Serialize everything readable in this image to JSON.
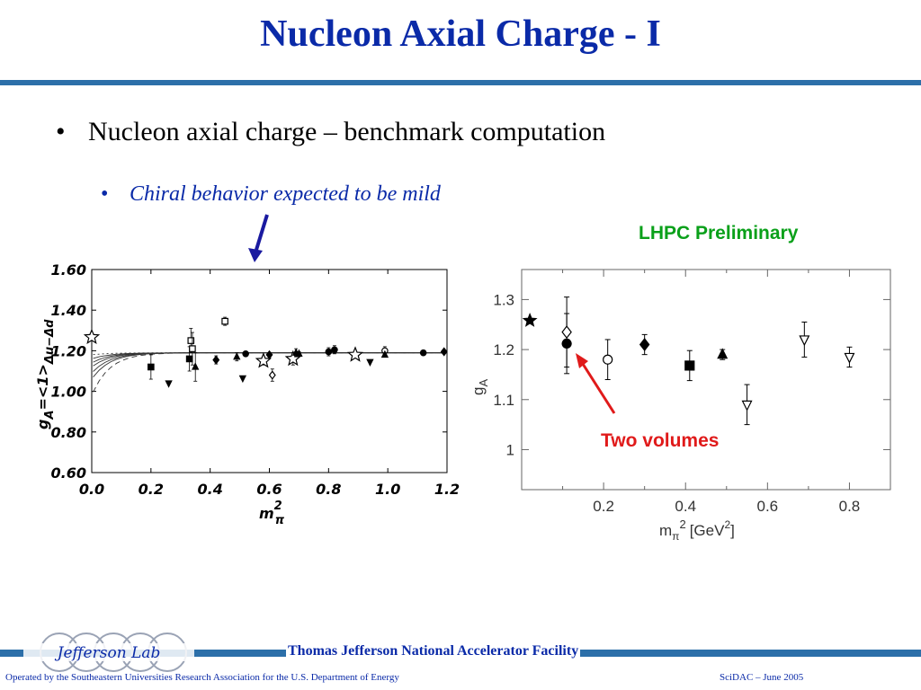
{
  "slide": {
    "title": "Nucleon Axial Charge - I",
    "bullet1": "Nucleon axial charge – benchmark computation",
    "bullet2": "Chiral behavior expected to be mild",
    "bullet_char": "•",
    "annotation_lhpc": "LHPC Preliminary",
    "annotation_two_volumes": "Two volumes"
  },
  "footer": {
    "logo_text": "Jefferson Lab",
    "facility": "Thomas Jefferson National Accelerator Facility",
    "operated_by": "Operated by the Southeastern Universities Research Association for the U.S. Department of  Energy",
    "event": "SciDAC – June  2005"
  },
  "colors": {
    "title": "#0a2aa8",
    "rule": "#2c6fa9",
    "green": "#0aa01a",
    "red": "#e01a1a",
    "arrow_blue": "#1a1aa0"
  },
  "chart_data": [
    {
      "type": "scatter",
      "xlim": [
        0.0,
        1.2
      ],
      "ylim": [
        0.6,
        1.6
      ],
      "x_ticks": [
        "0.0",
        "0.2",
        "0.4",
        "0.6",
        "0.8",
        "1.0",
        "1.2"
      ],
      "y_ticks": [
        "0.60",
        "0.80",
        "1.00",
        "1.20",
        "1.40",
        "1.60"
      ],
      "xlabel": "m",
      "xlabel_sup": "2",
      "xlabel_sub": "π",
      "ylabel": "g",
      "ylabel_sub1": "A",
      "ylabel_mid": "=<1>",
      "ylabel_sub2": "Δu−Δd",
      "points": [
        {
          "x": 0.0,
          "y": 1.267,
          "m": "star-open",
          "e": 0
        },
        {
          "x": 0.2,
          "y": 1.12,
          "m": "square",
          "e": 0.06
        },
        {
          "x": 0.26,
          "y": 1.04,
          "m": "tri-down",
          "e": 0
        },
        {
          "x": 0.33,
          "y": 1.16,
          "m": "square",
          "e": 0.06
        },
        {
          "x": 0.335,
          "y": 1.25,
          "m": "square-open",
          "e": 0.06
        },
        {
          "x": 0.34,
          "y": 1.21,
          "m": "square-open",
          "e": 0.08
        },
        {
          "x": 0.35,
          "y": 1.12,
          "m": "tri-up",
          "e": 0.07
        },
        {
          "x": 0.42,
          "y": 1.155,
          "m": "diamond",
          "e": 0.02
        },
        {
          "x": 0.45,
          "y": 1.345,
          "m": "square-open",
          "e": 0.02
        },
        {
          "x": 0.49,
          "y": 1.17,
          "m": "tri-up",
          "e": 0.02
        },
        {
          "x": 0.51,
          "y": 1.065,
          "m": "tri-down",
          "e": 0
        },
        {
          "x": 0.52,
          "y": 1.185,
          "m": "circle",
          "e": 0.01
        },
        {
          "x": 0.58,
          "y": 1.15,
          "m": "star-open",
          "e": 0.02
        },
        {
          "x": 0.6,
          "y": 1.18,
          "m": "diamond",
          "e": 0.01
        },
        {
          "x": 0.61,
          "y": 1.08,
          "m": "diamond-open",
          "e": 0.03
        },
        {
          "x": 0.68,
          "y": 1.16,
          "m": "star-open",
          "e": 0.03
        },
        {
          "x": 0.69,
          "y": 1.19,
          "m": "tri-up",
          "e": 0.02
        },
        {
          "x": 0.7,
          "y": 1.185,
          "m": "tri-up",
          "e": 0.01
        },
        {
          "x": 0.8,
          "y": 1.195,
          "m": "circle",
          "e": 0.02
        },
        {
          "x": 0.82,
          "y": 1.205,
          "m": "circle",
          "e": 0.02
        },
        {
          "x": 0.89,
          "y": 1.18,
          "m": "star-open",
          "e": 0.01
        },
        {
          "x": 0.94,
          "y": 1.145,
          "m": "tri-down",
          "e": 0
        },
        {
          "x": 0.99,
          "y": 1.2,
          "m": "circle-open",
          "e": 0.02
        },
        {
          "x": 0.99,
          "y": 1.18,
          "m": "tri-up",
          "e": 0.01
        },
        {
          "x": 1.12,
          "y": 1.19,
          "m": "circle",
          "e": 0
        },
        {
          "x": 1.19,
          "y": 1.195,
          "m": "diamond",
          "e": 0
        }
      ],
      "curves": [
        {
          "y0": 0.98,
          "style": "dashed"
        },
        {
          "y0": 1.06,
          "style": "solid"
        },
        {
          "y0": 1.09,
          "style": "solid"
        },
        {
          "y0": 1.12,
          "style": "solid"
        },
        {
          "y0": 1.14,
          "style": "solid"
        },
        {
          "y0": 1.16,
          "style": "solid"
        },
        {
          "y0": 1.18,
          "style": "dotted"
        }
      ],
      "curve_end": 1.19
    },
    {
      "type": "scatter",
      "xlim": [
        0.0,
        0.9
      ],
      "ylim": [
        0.92,
        1.36
      ],
      "x_ticks": [
        "0.2",
        "0.4",
        "0.6",
        "0.8"
      ],
      "y_ticks": [
        "1",
        "1.1",
        "1.2",
        "1.3"
      ],
      "xlabel": "m",
      "xlabel_sub": "π",
      "xlabel_sup": "2",
      "xlabel_unit": "[GeV",
      "xlabel_unit_sup": "2",
      "xlabel_unit_end": "]",
      "ylabel": "g",
      "ylabel_sub": "A",
      "points": [
        {
          "x": 0.02,
          "y": 1.258,
          "m": "star",
          "e": 0
        },
        {
          "x": 0.11,
          "y": 1.212,
          "m": "circle",
          "e": 0.06
        },
        {
          "x": 0.11,
          "y": 1.235,
          "m": "diamond-open",
          "e": 0.07
        },
        {
          "x": 0.21,
          "y": 1.18,
          "m": "circle-open",
          "e": 0.04
        },
        {
          "x": 0.3,
          "y": 1.21,
          "m": "diamond",
          "e": 0.02
        },
        {
          "x": 0.41,
          "y": 1.168,
          "m": "square",
          "e": 0.03
        },
        {
          "x": 0.49,
          "y": 1.19,
          "m": "tri-up",
          "e": 0.01
        },
        {
          "x": 0.55,
          "y": 1.09,
          "m": "tri-down-open",
          "e": 0.04
        },
        {
          "x": 0.69,
          "y": 1.22,
          "m": "tri-down-open",
          "e": 0.035
        },
        {
          "x": 0.8,
          "y": 1.185,
          "m": "tri-down-open",
          "e": 0.02
        }
      ]
    }
  ]
}
